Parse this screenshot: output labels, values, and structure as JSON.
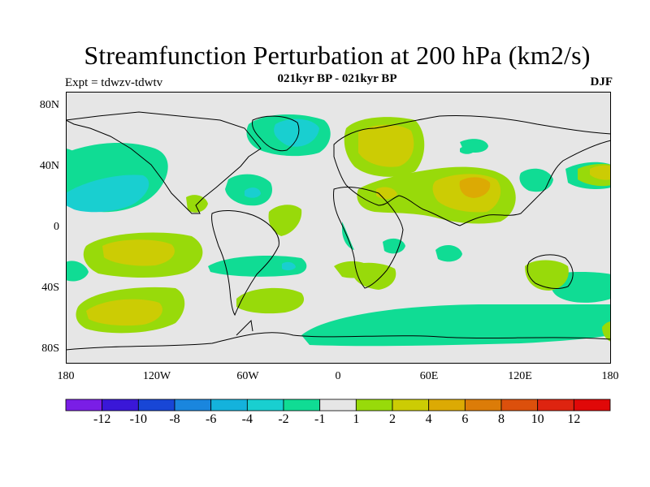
{
  "title": "Streamfunction Perturbation at 200 hPa (km2/s)",
  "subtitle": "021kyr BP - 021kyr BP",
  "experiment": "Expt = tdwzv-tdwtv",
  "season": "DJF",
  "lat_axis": [
    "80N",
    "40N",
    "0",
    "40S",
    "80S"
  ],
  "lon_axis": [
    "180",
    "120W",
    "60W",
    "0",
    "60E",
    "120E",
    "180"
  ],
  "colorbar": {
    "colors": [
      "#7a1ee6",
      "#3a17d8",
      "#1846d6",
      "#1a86de",
      "#14b2dc",
      "#19cfd0",
      "#10dc94",
      "#e6e6e6",
      "#98da0a",
      "#cccc04",
      "#dcaa04",
      "#dc7c08",
      "#dc500c",
      "#de2410",
      "#e00808"
    ],
    "labels": [
      "-12",
      "-10",
      "-8",
      "-6",
      "-4",
      "-2",
      "-1",
      "1",
      "2",
      "4",
      "6",
      "8",
      "10",
      "12"
    ]
  },
  "chart_data": {
    "type": "heatmap",
    "title": "Streamfunction Perturbation at 200 hPa (km2/s)",
    "subtitle": "021kyr BP - 021kyr BP",
    "variable": "Streamfunction Perturbation",
    "level": "200 hPa",
    "units": "km2/s",
    "season": "DJF",
    "x_range": [
      -180,
      180
    ],
    "y_range": [
      -90,
      90
    ],
    "levels": [
      -12,
      -10,
      -8,
      -6,
      -4,
      -2,
      -1,
      1,
      2,
      4,
      6,
      8,
      10,
      12
    ],
    "regions": [
      {
        "lon": -148,
        "lat": 20,
        "value": -3
      },
      {
        "lon": -60,
        "lat": 25,
        "value": -2
      },
      {
        "lon": -35,
        "lat": 62,
        "value": -2
      },
      {
        "lon": 110,
        "lat": 60,
        "value": -1
      },
      {
        "lon": 125,
        "lat": 40,
        "value": -1
      },
      {
        "lon": 50,
        "lat": -20,
        "value": -1
      },
      {
        "lon": -30,
        "lat": -28,
        "value": -1
      },
      {
        "lon": 60,
        "lat": -65,
        "value": -1
      },
      {
        "lon": -160,
        "lat": -28,
        "value": -1
      },
      {
        "lon": 165,
        "lat": 38,
        "value": 2
      },
      {
        "lon": 50,
        "lat": 62,
        "value": 4
      },
      {
        "lon": 95,
        "lat": 25,
        "value": 6
      },
      {
        "lon": 30,
        "lat": 20,
        "value": 2
      },
      {
        "lon": -140,
        "lat": -15,
        "value": 4
      },
      {
        "lon": -145,
        "lat": -55,
        "value": 4
      },
      {
        "lon": -35,
        "lat": -45,
        "value": 2
      },
      {
        "lon": 155,
        "lat": -30,
        "value": 2
      },
      {
        "lon": -35,
        "lat": 5,
        "value": 2
      }
    ]
  }
}
